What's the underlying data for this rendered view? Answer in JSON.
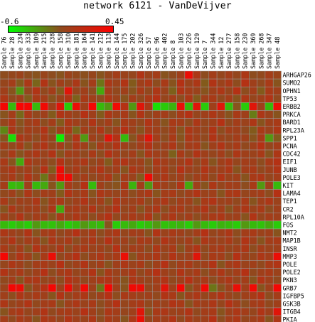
{
  "chart_data": {
    "type": "heatmap",
    "title": "network 6121 - VanDeVijver",
    "color_scale": {
      "min": -0.6,
      "max": 0.45,
      "min_label": "-0.6",
      "max_label": "0.45",
      "low_color": "#00ff00",
      "high_color": "#ff0000",
      "mid_color": "#8f4a1e"
    },
    "columns": [
      "Sample 76",
      "Sample 28",
      "Sample 234",
      "Sample 333",
      "Sample 109",
      "Sample 215",
      "Sample 238",
      "Sample 158",
      "Sample 310",
      "Sample 181",
      "Sample 164",
      "Sample 141",
      "Sample 212",
      "Sample 113",
      "Sample 144",
      "Sample 175",
      "Sample 202",
      "Sample 326",
      "Sample 57",
      "Sample 96",
      "Sample 402",
      "Sample 8",
      "Sample 103",
      "Sample 226",
      "Sample 129",
      "Sample 7",
      "Sample 344",
      "Sample 12",
      "Sample 277",
      "Sample 158",
      "Sample 230",
      "Sample 369",
      "Sample 268",
      "Sample 347",
      "Sample 48"
    ],
    "rows": [
      "ARHGAP26",
      "SUMO2",
      "OPHN1",
      "TP53",
      "ERBB2",
      "PRKCA",
      "BARD1",
      "RPL23A",
      "SPP1",
      "PCNA",
      "CDC42",
      "EIF1",
      "JUNB",
      "POLE3",
      "KIT",
      "LAMA4",
      "TEP1",
      "CR2",
      "RPL10A",
      "FOS",
      "NMT2",
      "MAP1B",
      "INSR",
      "MMP3",
      "POLE",
      "POLE2",
      "PKN3",
      "GRB7",
      "IGFBP5",
      "GSK3B",
      "ITGB4",
      "PKIA"
    ],
    "values": [
      [
        -0.08,
        -0.05,
        -0.02,
        -0.08,
        -0.1,
        -0.03,
        -0.08,
        -0.1,
        -0.02,
        -0.06,
        -0.09,
        -0.04,
        -0.1,
        -0.04,
        0.02,
        -0.02,
        -0.04,
        0.08,
        -0.02,
        0.02,
        -0.1,
        -0.07,
        0.0,
        0.35,
        0.06,
        -0.08,
        0.02,
        -0.04,
        0.02,
        -0.05,
        0.06,
        -0.08,
        -0.06,
        0.02,
        -0.03
      ],
      [
        -0.04,
        0.02,
        -0.12,
        0.05,
        -0.15,
        0.08,
        -0.1,
        0.0,
        -0.06,
        0.05,
        -0.1,
        0.02,
        -0.2,
        0.05,
        -0.02,
        0.08,
        -0.12,
        0.0,
        0.06,
        -0.08,
        0.04,
        -0.1,
        0.1,
        -0.02,
        0.06,
        -0.12,
        0.08,
        -0.02,
        0.05,
        -0.08,
        0.1,
        0.0,
        -0.06,
        0.04,
        -0.1
      ],
      [
        0.0,
        -0.1,
        -0.3,
        -0.05,
        0.08,
        -0.06,
        0.02,
        -0.12,
        0.3,
        -0.04,
        0.0,
        -0.08,
        -0.35,
        0.02,
        -0.06,
        0.0,
        -0.1,
        0.04,
        -0.06,
        0.06,
        -0.02,
        -0.14,
        0.08,
        0.02,
        -0.02,
        -0.1,
        0.0,
        0.06,
        -0.04,
        0.1,
        -0.08,
        0.02,
        -0.12,
        0.04,
        0.0
      ],
      [
        0.06,
        -0.06,
        0.0,
        -0.12,
        0.04,
        0.02,
        -0.1,
        -0.02,
        0.08,
        -0.14,
        0.04,
        0.0,
        -0.08,
        0.06,
        -0.02,
        -0.1,
        0.02,
        -0.06,
        0.04,
        0.1,
        -0.04,
        0.02,
        -0.08,
        0.06,
        -0.12,
        0.0,
        0.04,
        -0.06,
        0.02,
        -0.1,
        0.06,
        -0.04,
        0.0,
        0.08,
        -0.06
      ],
      [
        0.4,
        -0.4,
        0.42,
        0.4,
        -0.4,
        0.38,
        0.0,
        0.3,
        -0.45,
        0.35,
        0.0,
        0.4,
        -0.4,
        -0.3,
        0.38,
        0.1,
        -0.3,
        0.3,
        0.05,
        -0.5,
        -0.45,
        -0.38,
        0.35,
        -0.4,
        0.3,
        -0.45,
        0.0,
        0.3,
        -0.4,
        -0.1,
        -0.45,
        0.3,
        0.0,
        -0.4,
        0.35
      ],
      [
        -0.1,
        0.02,
        -0.16,
        0.05,
        -0.06,
        0.0,
        -0.12,
        0.08,
        0.02,
        -0.04,
        0.1,
        0.0,
        -0.12,
        0.06,
        -0.02,
        0.04,
        -0.1,
        0.08,
        -0.06,
        0.0,
        0.02,
        -0.08,
        0.04,
        0.1,
        -0.04,
        0.0,
        0.06,
        -0.02,
        -0.1,
        0.04,
        0.0,
        -0.22,
        0.06,
        -0.02,
        -0.1
      ],
      [
        -0.04,
        0.06,
        -0.1,
        0.0,
        0.04,
        -0.08,
        0.02,
        -0.12,
        0.06,
        0.0,
        -0.04,
        0.08,
        -0.06,
        0.02,
        -0.1,
        0.04,
        0.0,
        -0.06,
        0.08,
        -0.02,
        -0.1,
        0.04,
        0.02,
        -0.08,
        0.06,
        -0.04,
        0.0,
        0.1,
        -0.06,
        0.02,
        -0.02,
        0.06,
        -0.1,
        0.0,
        0.04
      ],
      [
        -0.25,
        0.05,
        -0.08,
        0.02,
        -0.02,
        0.08,
        -0.1,
        0.0,
        0.04,
        -0.16,
        0.02,
        -0.04,
        0.06,
        -0.08,
        0.0,
        0.1,
        -0.02,
        -0.1,
        0.04,
        0.0,
        -0.06,
        0.02,
        -0.1,
        0.06,
        0.0,
        -0.04,
        0.08,
        -0.08,
        0.02,
        0.0,
        -0.06,
        -0.12,
        0.04,
        -0.02,
        0.06
      ],
      [
        -0.1,
        -0.5,
        0.06,
        0.0,
        -0.08,
        0.04,
        -0.05,
        -0.55,
        -0.1,
        0.08,
        -0.3,
        0.0,
        -0.06,
        0.3,
        0.1,
        -0.4,
        -0.1,
        0.06,
        0.3,
        0.02,
        -0.08,
        0.04,
        -0.1,
        0.06,
        0.0,
        -0.06,
        0.08,
        -0.02,
        -0.04,
        0.02,
        0.0,
        -0.1,
        0.04,
        -0.3,
        -0.12
      ],
      [
        0.02,
        -0.06,
        0.04,
        -0.1,
        0.0,
        0.08,
        -0.04,
        0.02,
        -0.08,
        0.06,
        0.0,
        -0.1,
        0.04,
        -0.02,
        0.08,
        0.0,
        -0.06,
        0.02,
        0.1,
        -0.04,
        0.0,
        0.06,
        -0.08,
        0.02,
        0.04,
        -0.1,
        0.0,
        0.08,
        -0.02,
        0.04,
        -0.06,
        0.0,
        0.1,
        -0.04,
        0.02
      ],
      [
        -0.06,
        0.04,
        -0.1,
        0.0,
        0.06,
        -0.02,
        0.08,
        -0.1,
        0.02,
        0.0,
        -0.06,
        0.04,
        -0.08,
        0.1,
        0.0,
        -0.04,
        0.02,
        -0.1,
        0.06,
        0.0,
        -0.02,
        -0.14,
        0.04,
        -0.06,
        0.08,
        0.0,
        -0.04,
        0.02,
        -0.08,
        0.06,
        0.0,
        -0.02,
        0.04,
        -0.1,
        0.06
      ],
      [
        0.04,
        -0.1,
        -0.35,
        0.06,
        -0.02,
        0.0,
        -0.08,
        0.1,
        -0.04,
        0.02,
        0.06,
        -0.06,
        0.0,
        -0.12,
        0.04,
        0.08,
        -0.02,
        0.0,
        -0.1,
        0.06,
        0.02,
        -0.04,
        0.0,
        0.08,
        -0.06,
        0.04,
        -0.1,
        0.0,
        0.06,
        -0.04,
        0.02,
        0.0,
        -0.08,
        0.04,
        0.1
      ],
      [
        0.0,
        0.06,
        -0.04,
        0.02,
        -0.08,
        0.1,
        -0.12,
        0.35,
        -0.02,
        0.04,
        -0.06,
        0.0,
        0.08,
        -0.04,
        0.02,
        -0.1,
        0.06,
        0.0,
        -0.08,
        0.02,
        0.04,
        -0.06,
        0.1,
        0.0,
        -0.04,
        0.08,
        -0.02,
        0.0,
        0.06,
        -0.1,
        0.02,
        0.04,
        -0.06,
        0.0,
        0.08
      ],
      [
        -0.02,
        0.04,
        -0.08,
        0.08,
        -0.04,
        -0.2,
        0.0,
        0.4,
        0.38,
        -0.04,
        0.02,
        -0.06,
        0.0,
        0.06,
        -0.1,
        0.02,
        -0.02,
        -0.12,
        0.38,
        0.0,
        0.06,
        -0.04,
        0.02,
        -0.08,
        0.0,
        0.04,
        -0.06,
        0.08,
        -0.02,
        0.0,
        -0.1,
        0.04,
        0.06,
        -0.04,
        0.02
      ],
      [
        0.02,
        -0.4,
        -0.38,
        0.0,
        -0.4,
        -0.35,
        -0.1,
        -0.3,
        0.04,
        -0.06,
        0.1,
        -0.4,
        0.0,
        -0.08,
        -0.1,
        0.06,
        -0.38,
        0.02,
        -0.3,
        0.04,
        0.0,
        -0.06,
        0.08,
        -0.35,
        0.0,
        -0.1,
        0.06,
        -0.04,
        0.02,
        0.0,
        -0.08,
        0.04,
        -0.3,
        0.0,
        -0.4
      ],
      [
        -0.06,
        0.0,
        -0.1,
        0.06,
        -0.08,
        0.02,
        0.0,
        -0.12,
        0.08,
        -0.02,
        0.04,
        -0.1,
        0.06,
        0.0,
        -0.04,
        0.02,
        -0.08,
        0.0,
        0.06,
        -0.1,
        0.02,
        0.04,
        -0.06,
        0.0,
        0.08,
        -0.02,
        0.0,
        -0.1,
        0.04,
        0.06,
        -0.04,
        0.0,
        0.02,
        -0.08,
        0.1
      ],
      [
        0.04,
        -0.08,
        0.0,
        -0.02,
        0.06,
        -0.1,
        0.02,
        0.04,
        -0.06,
        0.0,
        0.08,
        -0.04,
        0.02,
        -0.1,
        0.06,
        0.0,
        -0.02,
        0.04,
        -0.08,
        0.0,
        0.06,
        -0.06,
        0.02,
        0.0,
        -0.1,
        0.04,
        0.08,
        -0.02,
        0.0,
        -0.06,
        0.04,
        -0.1,
        0.0,
        0.06,
        -0.02
      ],
      [
        -0.1,
        0.06,
        -0.04,
        0.0,
        0.02,
        -0.08,
        0.06,
        -0.35,
        0.0,
        0.04,
        -0.02,
        0.08,
        -0.06,
        0.0,
        0.1,
        -0.04,
        0.02,
        -0.1,
        0.0,
        0.06,
        -0.08,
        0.02,
        0.04,
        -0.04,
        0.0,
        0.08,
        -0.06,
        0.02,
        -0.1,
        0.0,
        0.06,
        -0.02,
        0.04,
        -0.08,
        0.0
      ],
      [
        0.0,
        -0.04,
        0.08,
        -0.06,
        0.02,
        0.0,
        -0.1,
        0.04,
        -0.02,
        0.06,
        0.0,
        -0.08,
        0.02,
        0.1,
        -0.06,
        0.0,
        0.04,
        -0.02,
        0.08,
        -0.1,
        0.0,
        0.06,
        -0.04,
        0.02,
        -0.08,
        0.0,
        0.04,
        0.06,
        -0.02,
        0.0,
        -0.1,
        0.08,
        -0.04,
        0.02,
        0.0
      ],
      [
        -0.4,
        -0.45,
        -0.4,
        -0.45,
        -0.3,
        -0.4,
        -0.42,
        -0.35,
        -0.45,
        -0.4,
        -0.3,
        -0.38,
        -0.4,
        -0.1,
        -0.45,
        -0.4,
        -0.35,
        -0.45,
        -0.4,
        -0.3,
        -0.42,
        -0.4,
        -0.38,
        -0.45,
        -0.3,
        -0.4,
        -0.45,
        -0.38,
        -0.4,
        -0.45,
        -0.3,
        -0.4,
        -0.42,
        -0.35,
        -0.45
      ],
      [
        0.06,
        0.0,
        -0.04,
        0.08,
        -0.1,
        0.02,
        0.04,
        -0.06,
        0.0,
        0.1,
        -0.02,
        0.04,
        -0.08,
        0.0,
        0.06,
        -0.04,
        0.02,
        0.0,
        -0.1,
        0.08,
        -0.02,
        0.04,
        0.0,
        -0.06,
        0.02,
        0.1,
        -0.04,
        0.0,
        0.06,
        -0.08,
        0.02,
        0.04,
        -0.02,
        0.0,
        -0.1
      ],
      [
        -0.02,
        0.08,
        -0.06,
        0.02,
        0.0,
        -0.1,
        0.06,
        -0.02,
        0.04,
        -0.08,
        0.0,
        0.06,
        -0.04,
        0.1,
        -0.02,
        0.0,
        -0.08,
        0.04,
        0.02,
        -0.06,
        0.08,
        0.0,
        -0.04,
        0.02,
        -0.1,
        0.06,
        0.0,
        -0.02,
        0.04,
        -0.06,
        0.08,
        0.0,
        -0.1,
        0.02,
        0.04
      ],
      [
        0.04,
        -0.06,
        0.02,
        -0.1,
        0.08,
        0.0,
        -0.04,
        0.06,
        -0.08,
        0.02,
        0.04,
        -0.02,
        0.0,
        -0.06,
        0.1,
        -0.04,
        0.02,
        0.0,
        -0.08,
        0.06,
        -0.02,
        0.04,
        -0.1,
        0.0,
        0.08,
        -0.06,
        0.02,
        0.04,
        -0.04,
        0.0,
        0.06,
        -0.08,
        0.02,
        -0.02,
        0.0
      ],
      [
        0.4,
        -0.04,
        0.08,
        0.0,
        -0.1,
        0.04,
        0.35,
        -0.06,
        0.02,
        0.1,
        -0.08,
        0.0,
        0.06,
        -0.02,
        0.04,
        0.35,
        -0.1,
        0.02,
        0.0,
        0.06,
        -0.04,
        0.08,
        -0.02,
        0.0,
        0.3,
        -0.06,
        0.04,
        0.02,
        -0.08,
        0.1,
        0.0,
        -0.04,
        0.06,
        0.02,
        0.35
      ],
      [
        -0.04,
        0.06,
        0.0,
        -0.08,
        0.02,
        0.04,
        -0.02,
        0.1,
        -0.06,
        0.0,
        0.08,
        -0.04,
        0.02,
        -0.1,
        0.0,
        0.06,
        -0.02,
        0.04,
        -0.08,
        0.0,
        0.1,
        -0.06,
        0.02,
        0.04,
        -0.04,
        0.0,
        0.08,
        -0.1,
        0.02,
        0.06,
        -0.02,
        0.0,
        -0.06,
        0.04,
        0.08
      ],
      [
        0.08,
        -0.02,
        0.04,
        -0.06,
        0.0,
        0.1,
        -0.08,
        0.02,
        0.06,
        -0.04,
        0.0,
        0.08,
        -0.1,
        0.04,
        -0.02,
        0.0,
        0.06,
        -0.06,
        0.02,
        0.1,
        0.0,
        -0.04,
        0.08,
        -0.02,
        0.04,
        -0.08,
        0.0,
        0.06,
        -0.04,
        0.02,
        0.1,
        -0.06,
        0.0,
        0.04,
        -0.02
      ],
      [
        -0.06,
        0.02,
        -0.1,
        0.04,
        0.06,
        -0.04,
        0.0,
        -0.08,
        0.1,
        0.02,
        -0.06,
        0.0,
        0.04,
        0.08,
        -0.02,
        -0.1,
        0.06,
        0.0,
        -0.04,
        0.02,
        0.08,
        -0.06,
        0.0,
        0.1,
        -0.02,
        0.04,
        -0.08,
        0.0,
        0.06,
        -0.04,
        0.02,
        -0.1,
        0.08,
        0.0,
        -0.06
      ],
      [
        -0.02,
        0.4,
        0.35,
        -0.1,
        0.0,
        0.1,
        0.4,
        0.0,
        0.35,
        0.0,
        0.38,
        0.0,
        -0.2,
        0.4,
        0.0,
        -0.1,
        0.38,
        0.35,
        -0.05,
        0.0,
        0.3,
        0.0,
        0.4,
        -0.1,
        0.0,
        0.38,
        -0.2,
        -0.1,
        0.0,
        0.35,
        0.0,
        0.38,
        -0.1,
        0.0,
        0.4
      ],
      [
        0.0,
        -0.08,
        0.06,
        -0.02,
        0.04,
        0.0,
        -0.1,
        0.08,
        -0.04,
        0.02,
        0.06,
        -0.06,
        0.0,
        0.1,
        -0.08,
        0.04,
        0.02,
        -0.02,
        0.0,
        -0.06,
        0.08,
        0.04,
        -0.1,
        0.0,
        0.06,
        -0.04,
        0.02,
        0.08,
        -0.02,
        -0.06,
        0.0,
        0.04,
        0.1,
        -0.08,
        0.02
      ],
      [
        0.06,
        -0.04,
        0.0,
        0.08,
        -0.06,
        0.02,
        0.04,
        -0.1,
        0.0,
        0.06,
        -0.02,
        0.04,
        -0.08,
        0.0,
        0.1,
        -0.04,
        0.02,
        0.06,
        -0.06,
        0.0,
        -0.02,
        0.08,
        0.04,
        -0.1,
        0.02,
        0.0,
        0.06,
        -0.04,
        0.1,
        0.0,
        -0.08,
        0.02,
        0.04,
        -0.06,
        0.0
      ],
      [
        -0.1,
        0.02,
        0.06,
        -0.04,
        0.0,
        0.08,
        -0.06,
        0.02,
        0.04,
        -0.02,
        0.1,
        0.0,
        -0.08,
        0.06,
        0.02,
        -0.04,
        0.0,
        0.3,
        -0.1,
        0.04,
        0.06,
        -0.02,
        0.0,
        0.08,
        -0.06,
        0.02,
        0.04,
        -0.1,
        0.0,
        0.06,
        0.02,
        -0.04,
        0.08,
        0.0,
        0.3
      ],
      [
        0.02,
        -0.06,
        0.04,
        0.0,
        -0.1,
        0.06,
        0.02,
        -0.04,
        0.08,
        0.0,
        -0.02,
        0.06,
        -0.08,
        0.04,
        0.0,
        -0.1,
        0.06,
        0.35,
        -0.04,
        0.02,
        0.0,
        0.08,
        -0.06,
        0.04,
        -0.02,
        0.0,
        0.1,
        -0.08,
        0.02,
        0.06,
        -0.04,
        0.0,
        0.04,
        -0.1,
        0.06
      ]
    ]
  }
}
